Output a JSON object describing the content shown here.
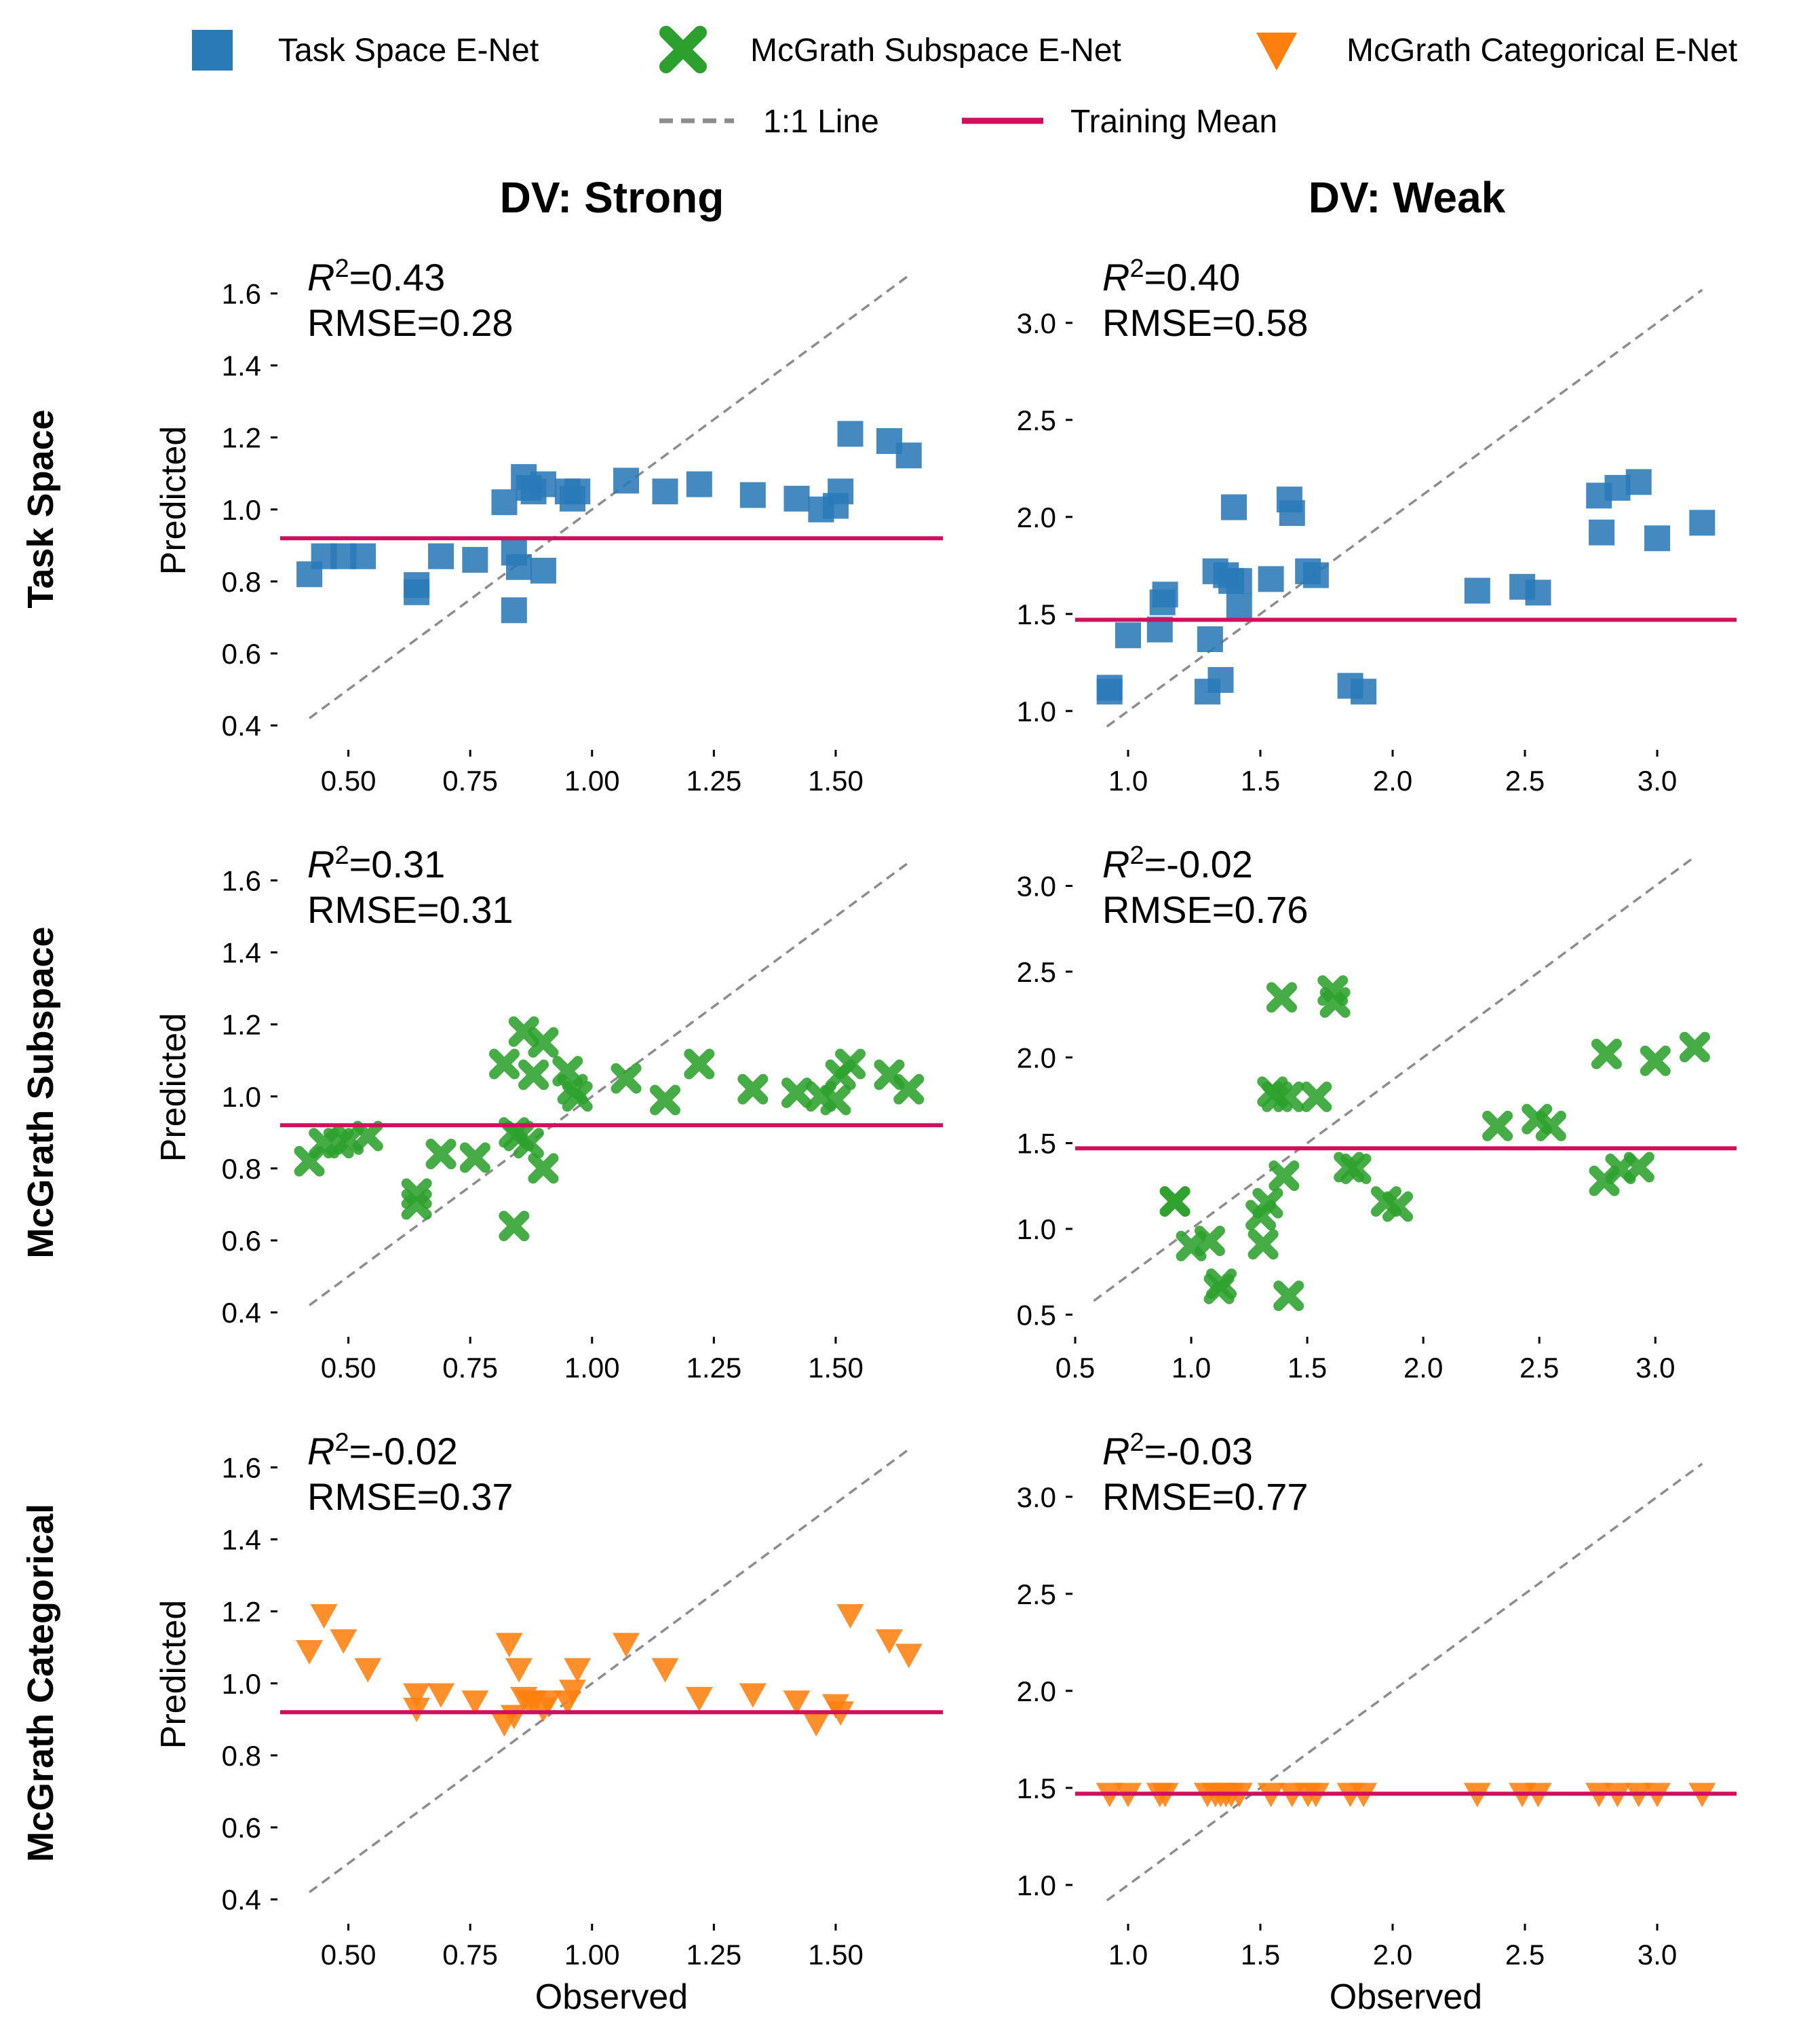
{
  "legend": {
    "items": [
      {
        "label": "Task Space E-Net",
        "marker": "square",
        "color": "#2a7ab8"
      },
      {
        "label": "McGrath Subspace E-Net",
        "marker": "x",
        "color": "#2ca02c"
      },
      {
        "label": "McGrath Categorical E-Net",
        "marker": "triangle-down",
        "color": "#ff7f0e"
      },
      {
        "label": "1:1 Line",
        "marker": "dashed-line",
        "color": "#8c8c8c"
      },
      {
        "label": "Training Mean",
        "marker": "solid-line",
        "color": "#d0105d"
      }
    ]
  },
  "columns": [
    "DV: Strong",
    "DV: Weak"
  ],
  "rows": [
    "Task Space",
    "McGrath Subspace",
    "McGrath Categorical"
  ],
  "colors": {
    "task": "#2a7ab8",
    "subspace": "#2ca02c",
    "categorical": "#ff7f0e",
    "identity": "#8c8c8c",
    "mean": "#d0105d"
  },
  "chart_data": [
    {
      "type": "scatter",
      "row": "Task Space",
      "column": "DV: Strong",
      "series_name": "Task Space E-Net",
      "marker": "square",
      "r2": "0.43",
      "rmse": "0.28",
      "training_mean": 0.92,
      "xlabel": "",
      "ylabel": "Predicted",
      "xlim": [
        0.36,
        1.72
      ],
      "ylim": [
        0.37,
        1.68
      ],
      "xticks": [
        "0.50",
        "0.75",
        "1.00",
        "1.25",
        "1.50"
      ],
      "yticks": [
        "0.4",
        "0.6",
        "0.8",
        "1.0",
        "1.2",
        "1.4",
        "1.6"
      ],
      "identity_range": [
        0.42,
        1.65
      ],
      "x": [
        0.42,
        0.45,
        0.49,
        0.53,
        0.64,
        0.64,
        0.69,
        0.76,
        0.82,
        0.84,
        0.84,
        0.85,
        0.86,
        0.87,
        0.88,
        0.9,
        0.9,
        0.95,
        0.96,
        0.97,
        1.07,
        1.15,
        1.22,
        1.33,
        1.42,
        1.47,
        1.5,
        1.51,
        1.53,
        1.61,
        1.65
      ],
      "y": [
        0.82,
        0.87,
        0.87,
        0.87,
        0.77,
        0.79,
        0.87,
        0.86,
        1.02,
        0.88,
        0.72,
        0.84,
        1.09,
        1.06,
        1.05,
        0.83,
        1.07,
        1.05,
        1.03,
        1.05,
        1.08,
        1.05,
        1.07,
        1.04,
        1.03,
        1.0,
        1.01,
        1.05,
        1.21,
        1.19,
        1.15
      ]
    },
    {
      "type": "scatter",
      "row": "Task Space",
      "column": "DV: Weak",
      "series_name": "Task Space E-Net",
      "marker": "square",
      "r2": "0.40",
      "rmse": "0.58",
      "training_mean": 1.47,
      "xlabel": "",
      "ylabel": "",
      "xlim": [
        0.8,
        3.3
      ],
      "ylim": [
        0.87,
        3.3
      ],
      "xticks": [
        "1.0",
        "1.5",
        "2.0",
        "2.5",
        "3.0"
      ],
      "yticks": [
        "1.0",
        "1.5",
        "2.0",
        "2.5",
        "3.0"
      ],
      "identity_range": [
        0.92,
        3.17
      ],
      "x": [
        0.93,
        0.93,
        1.0,
        1.12,
        1.13,
        1.14,
        1.3,
        1.31,
        1.33,
        1.35,
        1.37,
        1.39,
        1.4,
        1.42,
        1.42,
        1.54,
        1.61,
        1.62,
        1.68,
        1.71,
        1.84,
        1.89,
        2.32,
        2.49,
        2.55,
        2.78,
        2.79,
        2.85,
        2.93,
        3.0,
        3.17
      ],
      "y": [
        1.12,
        1.1,
        1.39,
        1.42,
        1.56,
        1.6,
        1.1,
        1.37,
        1.72,
        1.16,
        1.7,
        1.67,
        2.05,
        1.67,
        1.54,
        1.68,
        2.09,
        2.02,
        1.72,
        1.7,
        1.13,
        1.1,
        1.62,
        1.64,
        1.61,
        2.11,
        1.92,
        2.15,
        2.18,
        1.89,
        1.97
      ]
    },
    {
      "type": "scatter",
      "row": "McGrath Subspace",
      "column": "DV: Strong",
      "series_name": "McGrath Subspace E-Net",
      "marker": "x",
      "r2": "0.31",
      "rmse": "0.31",
      "training_mean": 0.92,
      "xlabel": "",
      "ylabel": "Predicted",
      "xlim": [
        0.36,
        1.72
      ],
      "ylim": [
        0.37,
        1.68
      ],
      "xticks": [
        "0.50",
        "0.75",
        "1.00",
        "1.25",
        "1.50"
      ],
      "yticks": [
        "0.4",
        "0.6",
        "0.8",
        "1.0",
        "1.2",
        "1.4",
        "1.6"
      ],
      "identity_range": [
        0.42,
        1.65
      ],
      "x": [
        0.42,
        0.45,
        0.48,
        0.5,
        0.54,
        0.64,
        0.64,
        0.69,
        0.76,
        0.82,
        0.84,
        0.84,
        0.85,
        0.86,
        0.87,
        0.88,
        0.9,
        0.9,
        0.95,
        0.96,
        0.97,
        1.07,
        1.15,
        1.22,
        1.33,
        1.42,
        1.47,
        1.5,
        1.51,
        1.53,
        1.61,
        1.65
      ],
      "y": [
        0.82,
        0.87,
        0.87,
        0.88,
        0.89,
        0.73,
        0.7,
        0.84,
        0.83,
        1.09,
        0.9,
        0.64,
        0.89,
        1.18,
        0.87,
        1.06,
        0.8,
        1.15,
        1.07,
        1.02,
        1.0,
        1.05,
        0.99,
        1.09,
        1.02,
        1.01,
        1.0,
        0.99,
        1.06,
        1.09,
        1.06,
        1.02
      ]
    },
    {
      "type": "scatter",
      "row": "McGrath Subspace",
      "column": "DV: Weak",
      "series_name": "McGrath Subspace E-Net",
      "marker": "x",
      "r2": "-0.02",
      "rmse": "0.76",
      "training_mean": 1.47,
      "xlabel": "",
      "ylabel": "",
      "xlim": [
        0.5,
        3.35
      ],
      "ylim": [
        0.45,
        3.2
      ],
      "xticks": [
        "0.5",
        "1.0",
        "1.5",
        "2.0",
        "2.5",
        "3.0"
      ],
      "yticks": [
        "0.5",
        "1.0",
        "1.5",
        "2.0",
        "2.5",
        "3.0"
      ],
      "identity_range": [
        0.58,
        3.17
      ],
      "x": [
        0.93,
        0.93,
        1.0,
        1.08,
        1.12,
        1.13,
        1.3,
        1.31,
        1.33,
        1.35,
        1.37,
        1.39,
        1.4,
        1.42,
        1.42,
        1.54,
        1.61,
        1.62,
        1.68,
        1.71,
        1.84,
        1.89,
        2.32,
        2.49,
        2.55,
        2.78,
        2.79,
        2.85,
        2.93,
        3.0,
        3.17
      ],
      "y": [
        1.16,
        1.16,
        0.9,
        0.93,
        0.65,
        0.68,
        1.08,
        0.91,
        1.15,
        1.8,
        1.77,
        2.35,
        1.31,
        0.61,
        1.77,
        1.77,
        2.39,
        2.32,
        1.36,
        1.35,
        1.16,
        1.13,
        1.6,
        1.64,
        1.6,
        1.28,
        2.02,
        1.35,
        1.36,
        1.98,
        2.06
      ]
    },
    {
      "type": "scatter",
      "row": "McGrath Categorical",
      "column": "DV: Strong",
      "series_name": "McGrath Categorical E-Net",
      "marker": "triangle-down",
      "r2": "-0.02",
      "rmse": "0.37",
      "training_mean": 0.92,
      "xlabel": "Observed",
      "ylabel": "Predicted",
      "xlim": [
        0.36,
        1.72
      ],
      "ylim": [
        0.37,
        1.68
      ],
      "xticks": [
        "0.50",
        "0.75",
        "1.00",
        "1.25",
        "1.50"
      ],
      "yticks": [
        "0.4",
        "0.6",
        "0.8",
        "1.0",
        "1.2",
        "1.4",
        "1.6"
      ],
      "identity_range": [
        0.42,
        1.65
      ],
      "x": [
        0.42,
        0.45,
        0.49,
        0.54,
        0.64,
        0.64,
        0.69,
        0.76,
        0.82,
        0.83,
        0.84,
        0.85,
        0.86,
        0.87,
        0.88,
        0.9,
        0.91,
        0.95,
        0.96,
        0.97,
        1.07,
        1.15,
        1.22,
        1.33,
        1.42,
        1.46,
        1.5,
        1.51,
        1.53,
        1.61,
        1.65
      ],
      "y": [
        1.09,
        1.19,
        1.12,
        1.04,
        0.97,
        0.93,
        0.97,
        0.95,
        0.89,
        1.11,
        0.91,
        1.04,
        0.96,
        0.95,
        0.95,
        0.93,
        0.95,
        0.95,
        0.98,
        1.04,
        1.11,
        1.04,
        0.96,
        0.97,
        0.95,
        0.89,
        0.94,
        0.92,
        1.19,
        1.12,
        1.08
      ]
    },
    {
      "type": "scatter",
      "row": "McGrath Categorical",
      "column": "DV: Weak",
      "series_name": "McGrath Categorical E-Net",
      "marker": "triangle-down",
      "r2": "-0.03",
      "rmse": "0.77",
      "training_mean": 1.47,
      "xlabel": "Observed",
      "ylabel": "",
      "xlim": [
        0.8,
        3.3
      ],
      "ylim": [
        0.87,
        3.3
      ],
      "xticks": [
        "1.0",
        "1.5",
        "2.0",
        "2.5",
        "3.0"
      ],
      "yticks": [
        "1.0",
        "1.5",
        "2.0",
        "2.5",
        "3.0"
      ],
      "identity_range": [
        0.92,
        3.17
      ],
      "x": [
        0.93,
        1.0,
        1.12,
        1.14,
        1.3,
        1.33,
        1.35,
        1.37,
        1.39,
        1.42,
        1.54,
        1.62,
        1.68,
        1.71,
        1.84,
        1.89,
        2.32,
        2.49,
        2.55,
        2.78,
        2.85,
        2.93,
        3.0,
        3.17
      ],
      "y": [
        1.47,
        1.47,
        1.47,
        1.47,
        1.47,
        1.47,
        1.47,
        1.47,
        1.47,
        1.47,
        1.47,
        1.47,
        1.47,
        1.47,
        1.47,
        1.47,
        1.47,
        1.47,
        1.47,
        1.47,
        1.47,
        1.47,
        1.47,
        1.47
      ]
    }
  ]
}
